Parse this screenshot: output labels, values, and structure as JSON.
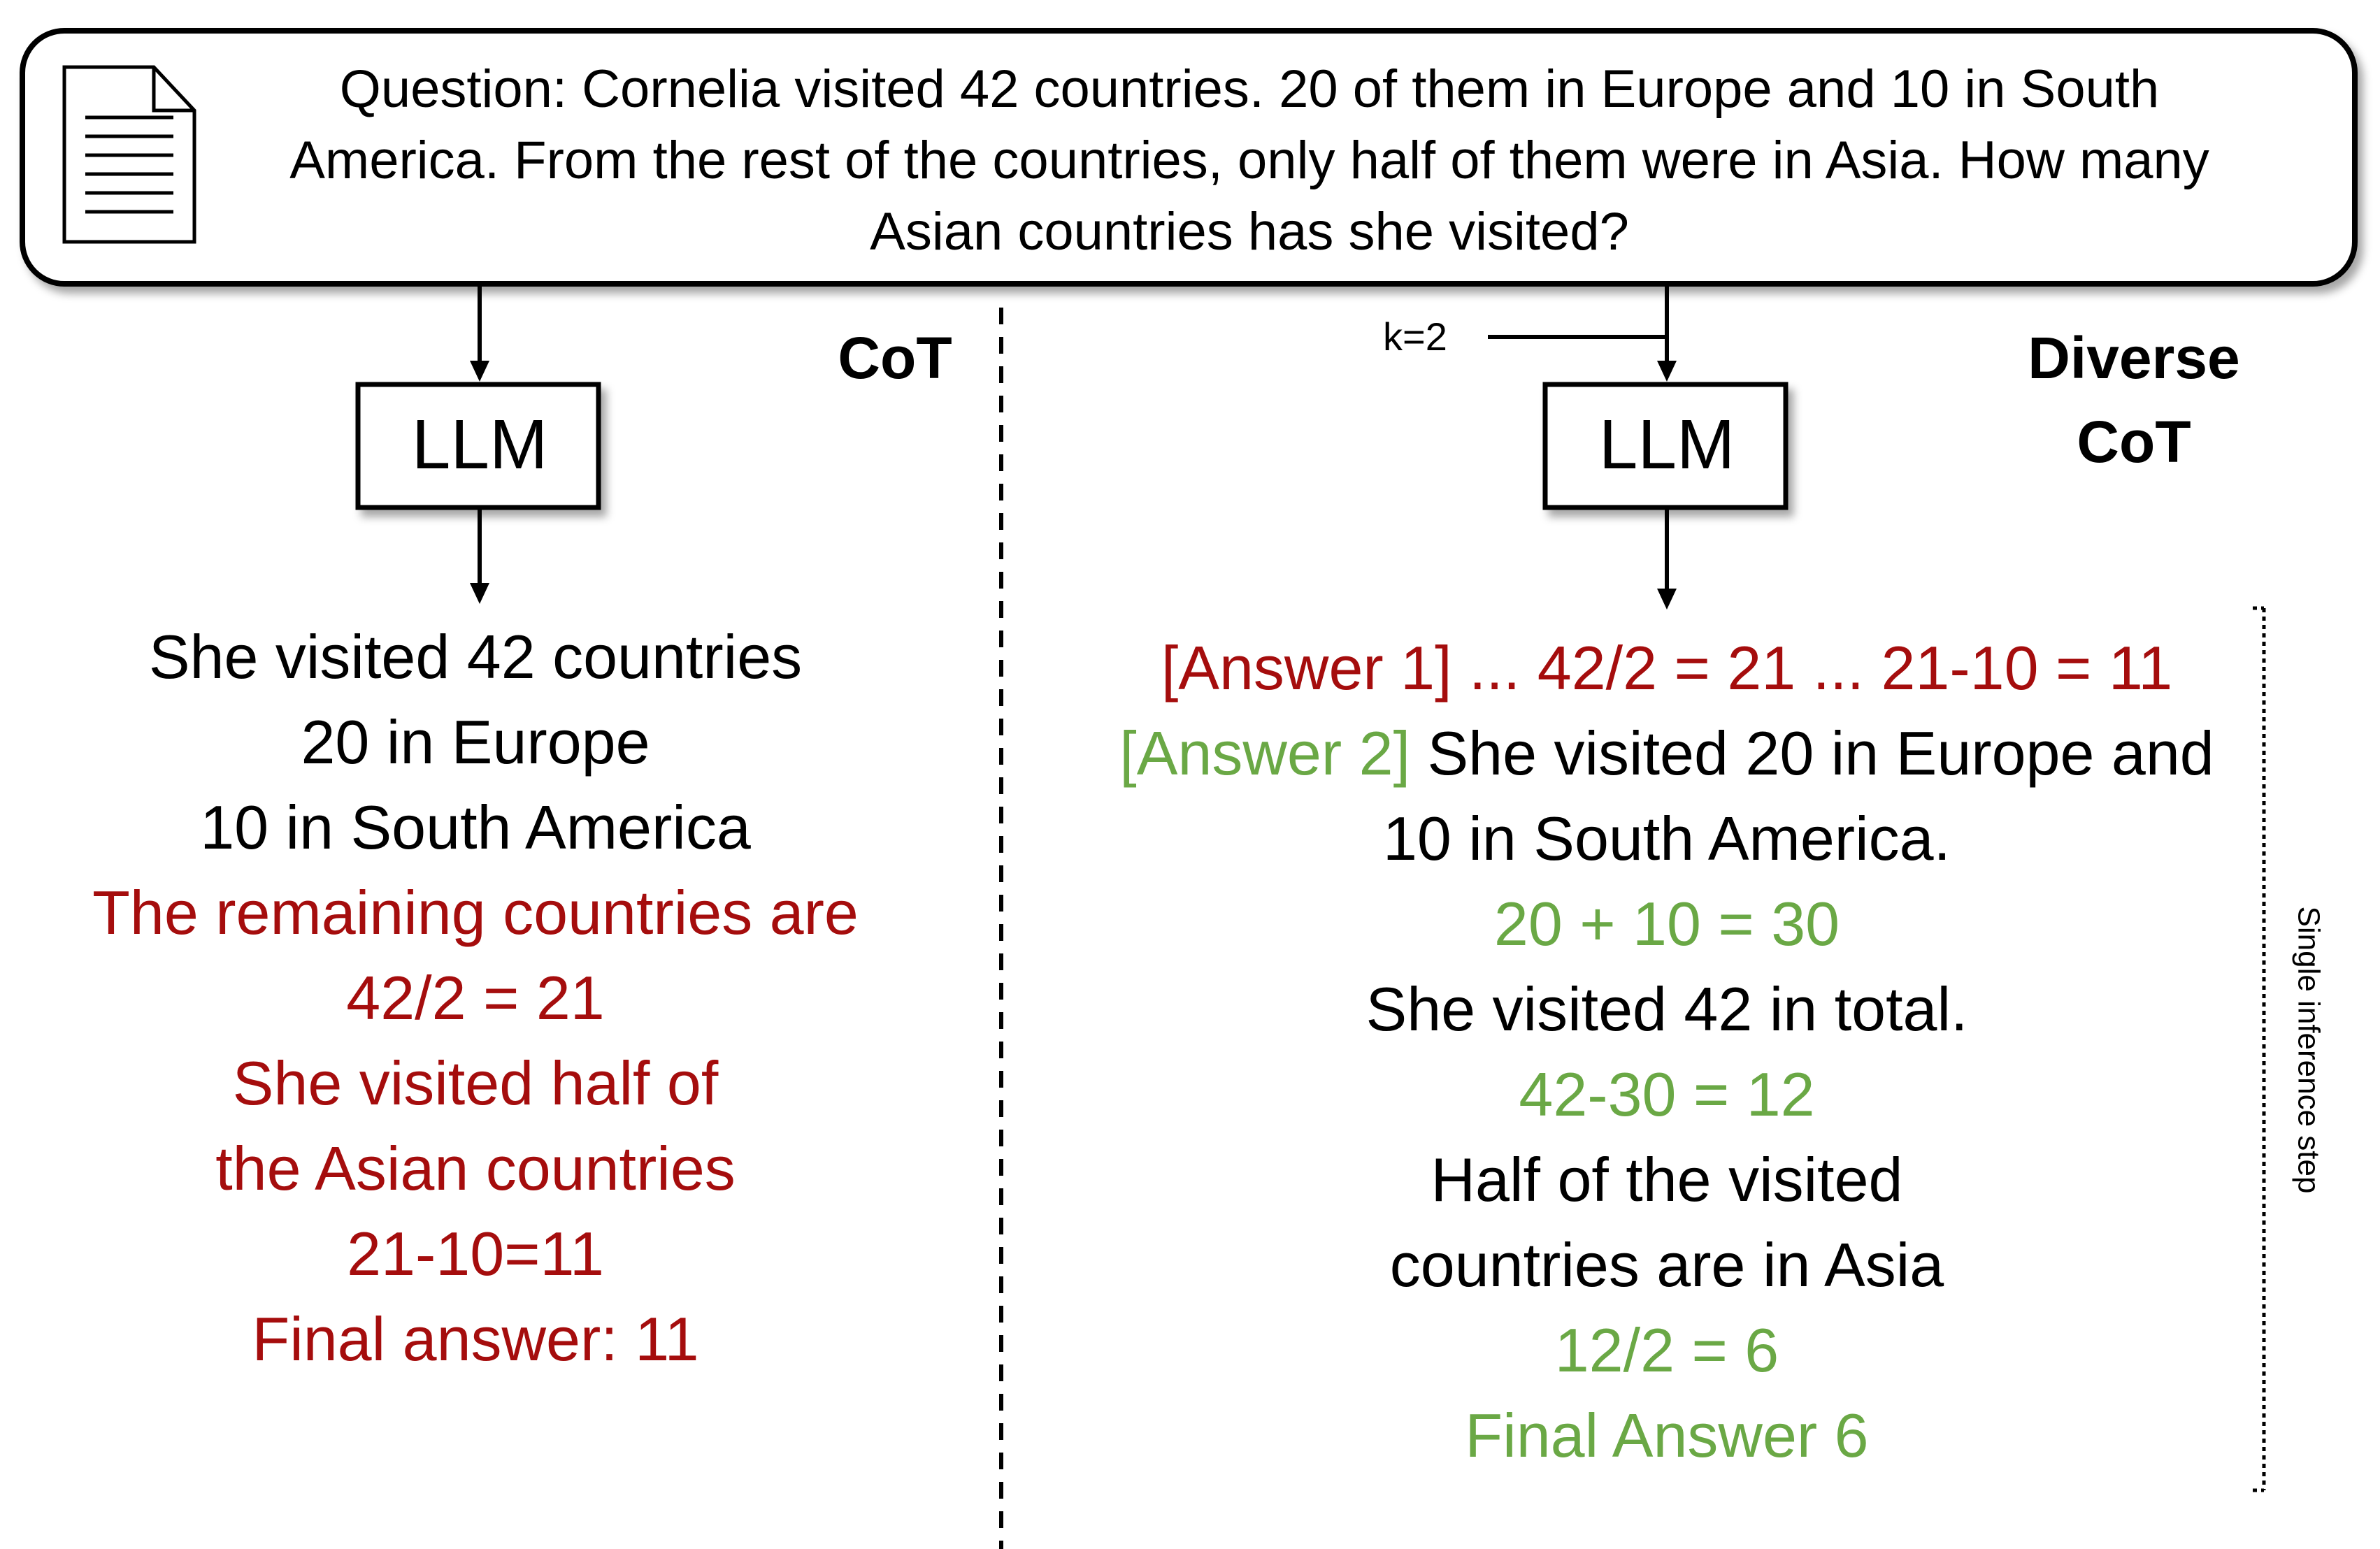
{
  "question": {
    "lines": [
      "Question: Cornelia visited 42 countries. 20 of them in Europe and 10 in South",
      "America. From the rest of the countries, only half of them were in Asia.  How many",
      "Asian countries has she visited?"
    ]
  },
  "left": {
    "heading": "CoT",
    "llm_label": "LLM",
    "lines": [
      {
        "text": "She visited 42 countries",
        "color": "#000000"
      },
      {
        "text": "20 in Europe",
        "color": "#000000"
      },
      {
        "text": "10 in South America",
        "color": "#000000"
      },
      {
        "text": "The remaining countries are",
        "color": "#a50d0d"
      },
      {
        "text": "42/2 = 21",
        "color": "#a50d0d"
      },
      {
        "text": "She visited half of",
        "color": "#a50d0d"
      },
      {
        "text": "the Asian countries",
        "color": "#a50d0d"
      },
      {
        "text": "21-10=11",
        "color": "#a50d0d"
      },
      {
        "text": "Final answer: 11",
        "color": "#a50d0d"
      }
    ]
  },
  "right": {
    "heading_line1": "Diverse",
    "heading_line2": "CoT",
    "k_label": "k=2",
    "llm_label": "LLM",
    "answer1": "[Answer 1] ... 42/2 = 21 ... 21-10 =  11",
    "answer2_tag": "[Answer 2]",
    "answer2_text": " She visited 20 in Europe and",
    "lines": [
      {
        "text": "10 in South America.",
        "color": "#000000"
      },
      {
        "text": "20 + 10 = 30",
        "color": "#6aa845"
      },
      {
        "text": "She visited 42 in total.",
        "color": "#000000"
      },
      {
        "text": "42-30 = 12",
        "color": "#6aa845"
      },
      {
        "text": "Half of the visited",
        "color": "#000000"
      },
      {
        "text": "countries are in Asia",
        "color": "#000000"
      },
      {
        "text": "12/2 = 6",
        "color": "#6aa845"
      },
      {
        "text": "Final Answer 6",
        "color": "#6aa845"
      }
    ],
    "bracket_label": "Single inference step"
  },
  "colors": {
    "error": "#a50d0d",
    "correct": "#6aa845",
    "text": "#000000"
  }
}
